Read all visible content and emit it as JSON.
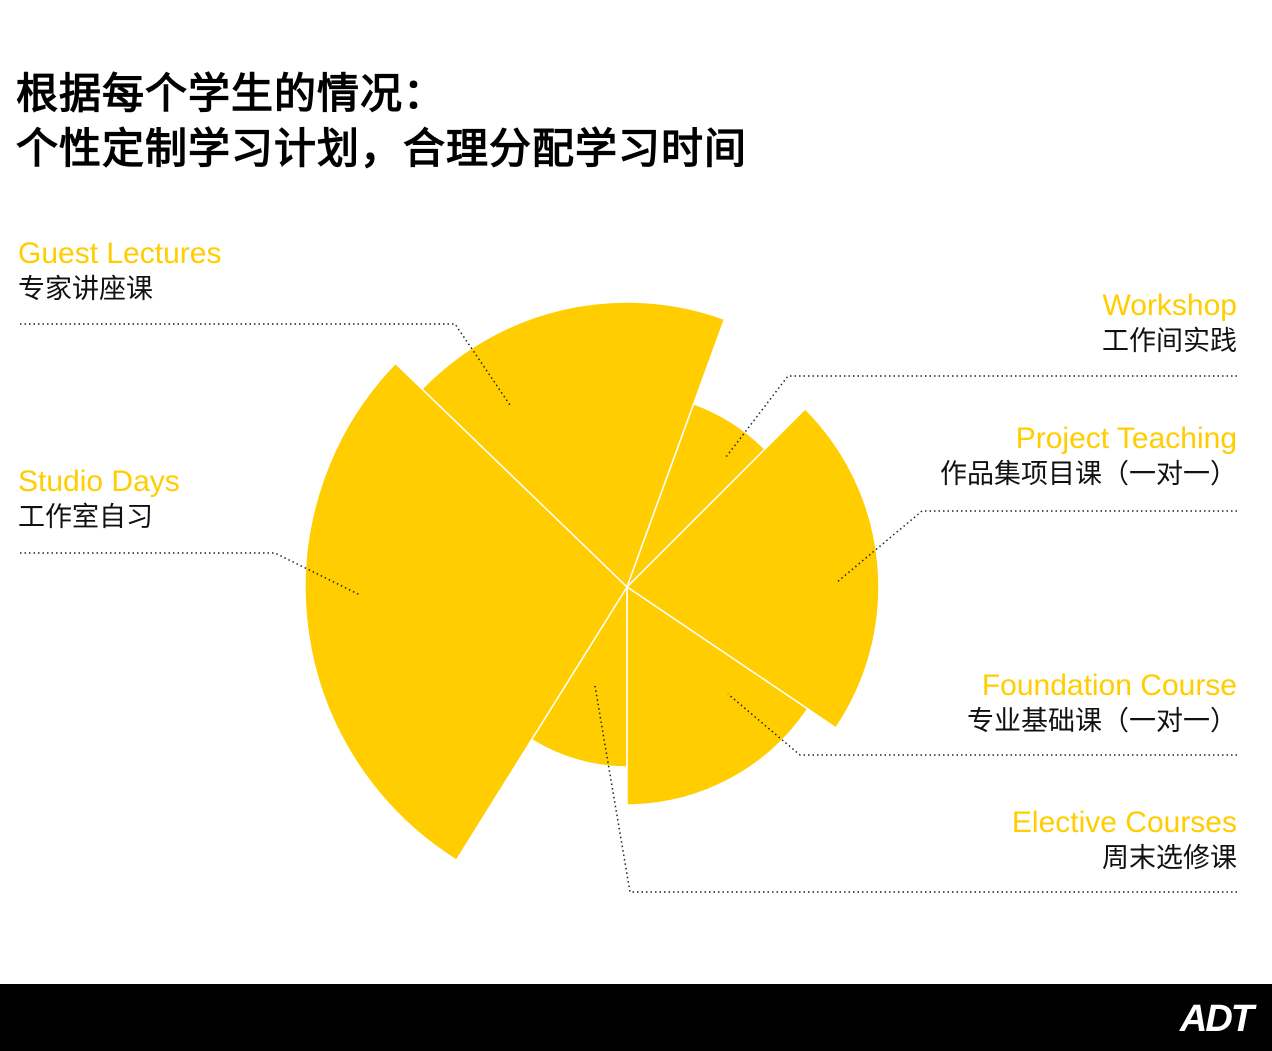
{
  "title": {
    "line1": "根据每个学生的情况：",
    "line2": "个性定制学习计划，合理分配学习时间"
  },
  "colors": {
    "accent": "#FFCD00",
    "leader": "#222222",
    "footer": "#000000"
  },
  "chart_data": {
    "type": "polar-area",
    "note_units": "relative radius of each segment",
    "segments": [
      {
        "en": "Guest Lectures",
        "zh": "专家讲座课",
        "start_deg": -46,
        "end_deg": 20,
        "radius": 285
      },
      {
        "en": "Workshop",
        "zh": "工作间实践",
        "start_deg": 20,
        "end_deg": 45,
        "radius": 195
      },
      {
        "en": "Project Teaching",
        "zh": "作品集项目课（一对一）",
        "start_deg": 45,
        "end_deg": 124,
        "radius": 252
      },
      {
        "en": "Foundation Course",
        "zh": "专业基础课（一对一）",
        "start_deg": 124,
        "end_deg": 180,
        "radius": 218
      },
      {
        "en": "Elective Courses",
        "zh": "周末选修课",
        "start_deg": 180,
        "end_deg": 212,
        "radius": 180
      },
      {
        "en": "Studio Days",
        "zh": "工作室自习",
        "start_deg": 212,
        "end_deg": 314,
        "radius": 322
      }
    ]
  },
  "footer": {
    "logo": "ADT"
  }
}
